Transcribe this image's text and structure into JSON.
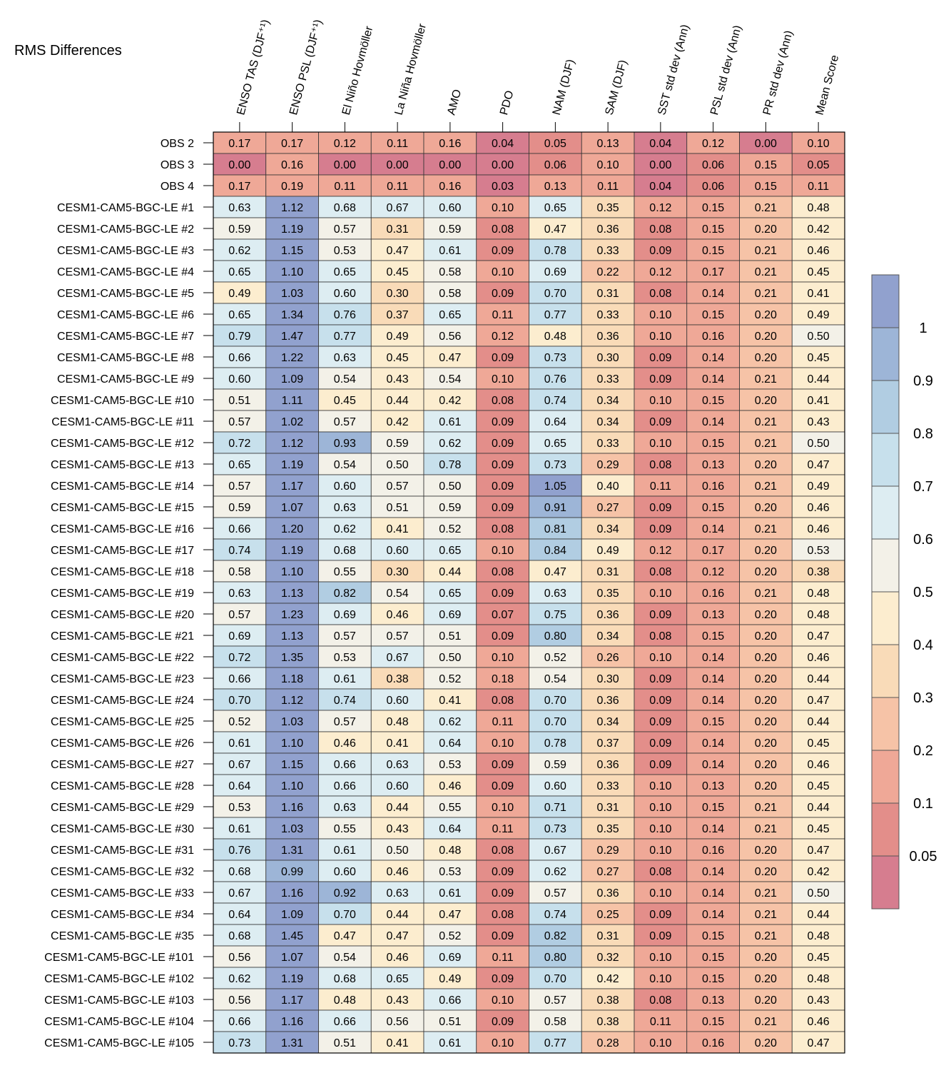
{
  "chart_data": {
    "type": "heatmap",
    "title": "RMS Differences",
    "columns": [
      "ENSO TAS (DJF⁺¹)",
      "ENSO PSL (DJF⁺¹)",
      "El Niño Hovmöller",
      "La Niña Hovmöller",
      "AMO",
      "PDO",
      "NAM (DJF)",
      "SAM (DJF)",
      "SST std dev (Ann)",
      "PSL std dev (Ann)",
      "PR std dev (Ann)",
      "Mean Score"
    ],
    "rows": [
      "OBS 2",
      "OBS 3",
      "OBS 4",
      "CESM1-CAM5-BGC-LE #1",
      "CESM1-CAM5-BGC-LE #2",
      "CESM1-CAM5-BGC-LE #3",
      "CESM1-CAM5-BGC-LE #4",
      "CESM1-CAM5-BGC-LE #5",
      "CESM1-CAM5-BGC-LE #6",
      "CESM1-CAM5-BGC-LE #7",
      "CESM1-CAM5-BGC-LE #8",
      "CESM1-CAM5-BGC-LE #9",
      "CESM1-CAM5-BGC-LE #10",
      "CESM1-CAM5-BGC-LE #11",
      "CESM1-CAM5-BGC-LE #12",
      "CESM1-CAM5-BGC-LE #13",
      "CESM1-CAM5-BGC-LE #14",
      "CESM1-CAM5-BGC-LE #15",
      "CESM1-CAM5-BGC-LE #16",
      "CESM1-CAM5-BGC-LE #17",
      "CESM1-CAM5-BGC-LE #18",
      "CESM1-CAM5-BGC-LE #19",
      "CESM1-CAM5-BGC-LE #20",
      "CESM1-CAM5-BGC-LE #21",
      "CESM1-CAM5-BGC-LE #22",
      "CESM1-CAM5-BGC-LE #23",
      "CESM1-CAM5-BGC-LE #24",
      "CESM1-CAM5-BGC-LE #25",
      "CESM1-CAM5-BGC-LE #26",
      "CESM1-CAM5-BGC-LE #27",
      "CESM1-CAM5-BGC-LE #28",
      "CESM1-CAM5-BGC-LE #29",
      "CESM1-CAM5-BGC-LE #30",
      "CESM1-CAM5-BGC-LE #31",
      "CESM1-CAM5-BGC-LE #32",
      "CESM1-CAM5-BGC-LE #33",
      "CESM1-CAM5-BGC-LE #34",
      "CESM1-CAM5-BGC-LE #35",
      "CESM1-CAM5-BGC-LE #101",
      "CESM1-CAM5-BGC-LE #102",
      "CESM1-CAM5-BGC-LE #103",
      "CESM1-CAM5-BGC-LE #104",
      "CESM1-CAM5-BGC-LE #105"
    ],
    "values": [
      [
        0.17,
        0.17,
        0.12,
        0.11,
        0.16,
        0.04,
        0.05,
        0.13,
        0.04,
        0.12,
        0.0,
        0.1
      ],
      [
        0.0,
        0.16,
        0.0,
        0.0,
        0.0,
        0.0,
        0.06,
        0.1,
        0.0,
        0.06,
        0.15,
        0.05
      ],
      [
        0.17,
        0.19,
        0.11,
        0.11,
        0.16,
        0.03,
        0.13,
        0.11,
        0.04,
        0.06,
        0.15,
        0.11
      ],
      [
        0.63,
        1.12,
        0.68,
        0.67,
        0.6,
        0.1,
        0.65,
        0.35,
        0.12,
        0.15,
        0.21,
        0.48
      ],
      [
        0.59,
        1.19,
        0.57,
        0.31,
        0.59,
        0.08,
        0.47,
        0.36,
        0.08,
        0.15,
        0.2,
        0.42
      ],
      [
        0.62,
        1.15,
        0.53,
        0.47,
        0.61,
        0.09,
        0.78,
        0.33,
        0.09,
        0.15,
        0.21,
        0.46
      ],
      [
        0.65,
        1.1,
        0.65,
        0.45,
        0.58,
        0.1,
        0.69,
        0.22,
        0.12,
        0.17,
        0.21,
        0.45
      ],
      [
        0.49,
        1.03,
        0.6,
        0.3,
        0.58,
        0.09,
        0.7,
        0.31,
        0.08,
        0.14,
        0.21,
        0.41
      ],
      [
        0.65,
        1.34,
        0.76,
        0.37,
        0.65,
        0.11,
        0.77,
        0.33,
        0.1,
        0.15,
        0.2,
        0.49
      ],
      [
        0.79,
        1.47,
        0.77,
        0.49,
        0.56,
        0.12,
        0.48,
        0.36,
        0.1,
        0.16,
        0.2,
        0.5
      ],
      [
        0.66,
        1.22,
        0.63,
        0.45,
        0.47,
        0.09,
        0.73,
        0.3,
        0.09,
        0.14,
        0.2,
        0.45
      ],
      [
        0.6,
        1.09,
        0.54,
        0.43,
        0.54,
        0.1,
        0.76,
        0.33,
        0.09,
        0.14,
        0.21,
        0.44
      ],
      [
        0.51,
        1.11,
        0.45,
        0.44,
        0.42,
        0.08,
        0.74,
        0.34,
        0.1,
        0.15,
        0.2,
        0.41
      ],
      [
        0.57,
        1.02,
        0.57,
        0.42,
        0.61,
        0.09,
        0.64,
        0.34,
        0.09,
        0.14,
        0.21,
        0.43
      ],
      [
        0.72,
        1.12,
        0.93,
        0.59,
        0.62,
        0.09,
        0.65,
        0.33,
        0.1,
        0.15,
        0.21,
        0.5
      ],
      [
        0.65,
        1.19,
        0.54,
        0.5,
        0.78,
        0.09,
        0.73,
        0.29,
        0.08,
        0.13,
        0.2,
        0.47
      ],
      [
        0.57,
        1.17,
        0.6,
        0.57,
        0.5,
        0.09,
        1.05,
        0.4,
        0.11,
        0.16,
        0.21,
        0.49
      ],
      [
        0.59,
        1.07,
        0.63,
        0.51,
        0.59,
        0.09,
        0.91,
        0.27,
        0.09,
        0.15,
        0.2,
        0.46
      ],
      [
        0.66,
        1.2,
        0.62,
        0.41,
        0.52,
        0.08,
        0.81,
        0.34,
        0.09,
        0.14,
        0.21,
        0.46
      ],
      [
        0.74,
        1.19,
        0.68,
        0.6,
        0.65,
        0.1,
        0.84,
        0.49,
        0.12,
        0.17,
        0.2,
        0.53
      ],
      [
        0.58,
        1.1,
        0.55,
        0.3,
        0.44,
        0.08,
        0.47,
        0.31,
        0.08,
        0.12,
        0.2,
        0.38
      ],
      [
        0.63,
        1.13,
        0.82,
        0.54,
        0.65,
        0.09,
        0.63,
        0.35,
        0.1,
        0.16,
        0.21,
        0.48
      ],
      [
        0.57,
        1.23,
        0.69,
        0.46,
        0.69,
        0.07,
        0.75,
        0.36,
        0.09,
        0.13,
        0.2,
        0.48
      ],
      [
        0.69,
        1.13,
        0.57,
        0.57,
        0.51,
        0.09,
        0.8,
        0.34,
        0.08,
        0.15,
        0.2,
        0.47
      ],
      [
        0.72,
        1.35,
        0.53,
        0.67,
        0.5,
        0.1,
        0.52,
        0.26,
        0.1,
        0.14,
        0.2,
        0.46
      ],
      [
        0.66,
        1.18,
        0.61,
        0.38,
        0.52,
        0.18,
        0.54,
        0.3,
        0.09,
        0.14,
        0.2,
        0.44
      ],
      [
        0.7,
        1.12,
        0.74,
        0.6,
        0.41,
        0.08,
        0.7,
        0.36,
        0.09,
        0.14,
        0.2,
        0.47
      ],
      [
        0.52,
        1.03,
        0.57,
        0.48,
        0.62,
        0.11,
        0.7,
        0.34,
        0.09,
        0.15,
        0.2,
        0.44
      ],
      [
        0.61,
        1.1,
        0.46,
        0.41,
        0.64,
        0.1,
        0.78,
        0.37,
        0.09,
        0.14,
        0.2,
        0.45
      ],
      [
        0.67,
        1.15,
        0.66,
        0.63,
        0.53,
        0.09,
        0.59,
        0.36,
        0.09,
        0.14,
        0.2,
        0.46
      ],
      [
        0.64,
        1.1,
        0.66,
        0.6,
        0.46,
        0.09,
        0.6,
        0.33,
        0.1,
        0.13,
        0.2,
        0.45
      ],
      [
        0.53,
        1.16,
        0.63,
        0.44,
        0.55,
        0.1,
        0.71,
        0.31,
        0.1,
        0.15,
        0.21,
        0.44
      ],
      [
        0.61,
        1.03,
        0.55,
        0.43,
        0.64,
        0.11,
        0.73,
        0.35,
        0.1,
        0.14,
        0.21,
        0.45
      ],
      [
        0.76,
        1.31,
        0.61,
        0.5,
        0.48,
        0.08,
        0.67,
        0.29,
        0.1,
        0.16,
        0.2,
        0.47
      ],
      [
        0.68,
        0.99,
        0.6,
        0.46,
        0.53,
        0.09,
        0.62,
        0.27,
        0.08,
        0.14,
        0.2,
        0.42
      ],
      [
        0.67,
        1.16,
        0.92,
        0.63,
        0.61,
        0.09,
        0.57,
        0.36,
        0.1,
        0.14,
        0.21,
        0.5
      ],
      [
        0.64,
        1.09,
        0.7,
        0.44,
        0.47,
        0.08,
        0.74,
        0.25,
        0.09,
        0.14,
        0.21,
        0.44
      ],
      [
        0.68,
        1.45,
        0.47,
        0.47,
        0.52,
        0.09,
        0.82,
        0.31,
        0.09,
        0.15,
        0.21,
        0.48
      ],
      [
        0.56,
        1.07,
        0.54,
        0.46,
        0.69,
        0.11,
        0.8,
        0.32,
        0.1,
        0.15,
        0.2,
        0.45
      ],
      [
        0.62,
        1.19,
        0.68,
        0.65,
        0.49,
        0.09,
        0.7,
        0.42,
        0.1,
        0.15,
        0.2,
        0.48
      ],
      [
        0.56,
        1.17,
        0.48,
        0.43,
        0.66,
        0.1,
        0.57,
        0.38,
        0.08,
        0.13,
        0.2,
        0.43
      ],
      [
        0.66,
        1.16,
        0.66,
        0.56,
        0.51,
        0.09,
        0.58,
        0.38,
        0.11,
        0.15,
        0.21,
        0.46
      ],
      [
        0.73,
        1.31,
        0.51,
        0.41,
        0.61,
        0.1,
        0.77,
        0.28,
        0.1,
        0.16,
        0.2,
        0.47
      ]
    ],
    "colorbar": {
      "boundaries": [
        0.05,
        0.1,
        0.2,
        0.3,
        0.4,
        0.5,
        0.6,
        0.7,
        0.8,
        0.9,
        1
      ],
      "tick_labels": [
        "0.05",
        "0.1",
        "0.2",
        "0.3",
        "0.4",
        "0.5",
        "0.6",
        "0.7",
        "0.8",
        "0.9",
        "1"
      ],
      "colors": [
        "#d67d8f",
        "#e38e8a",
        "#efa897",
        "#f6c3a7",
        "#f9dbb8",
        "#fcedcf",
        "#f3f1e8",
        "#ddedf2",
        "#c7e0ec",
        "#b1cde2",
        "#9db5d7",
        "#91a1ce"
      ]
    }
  }
}
